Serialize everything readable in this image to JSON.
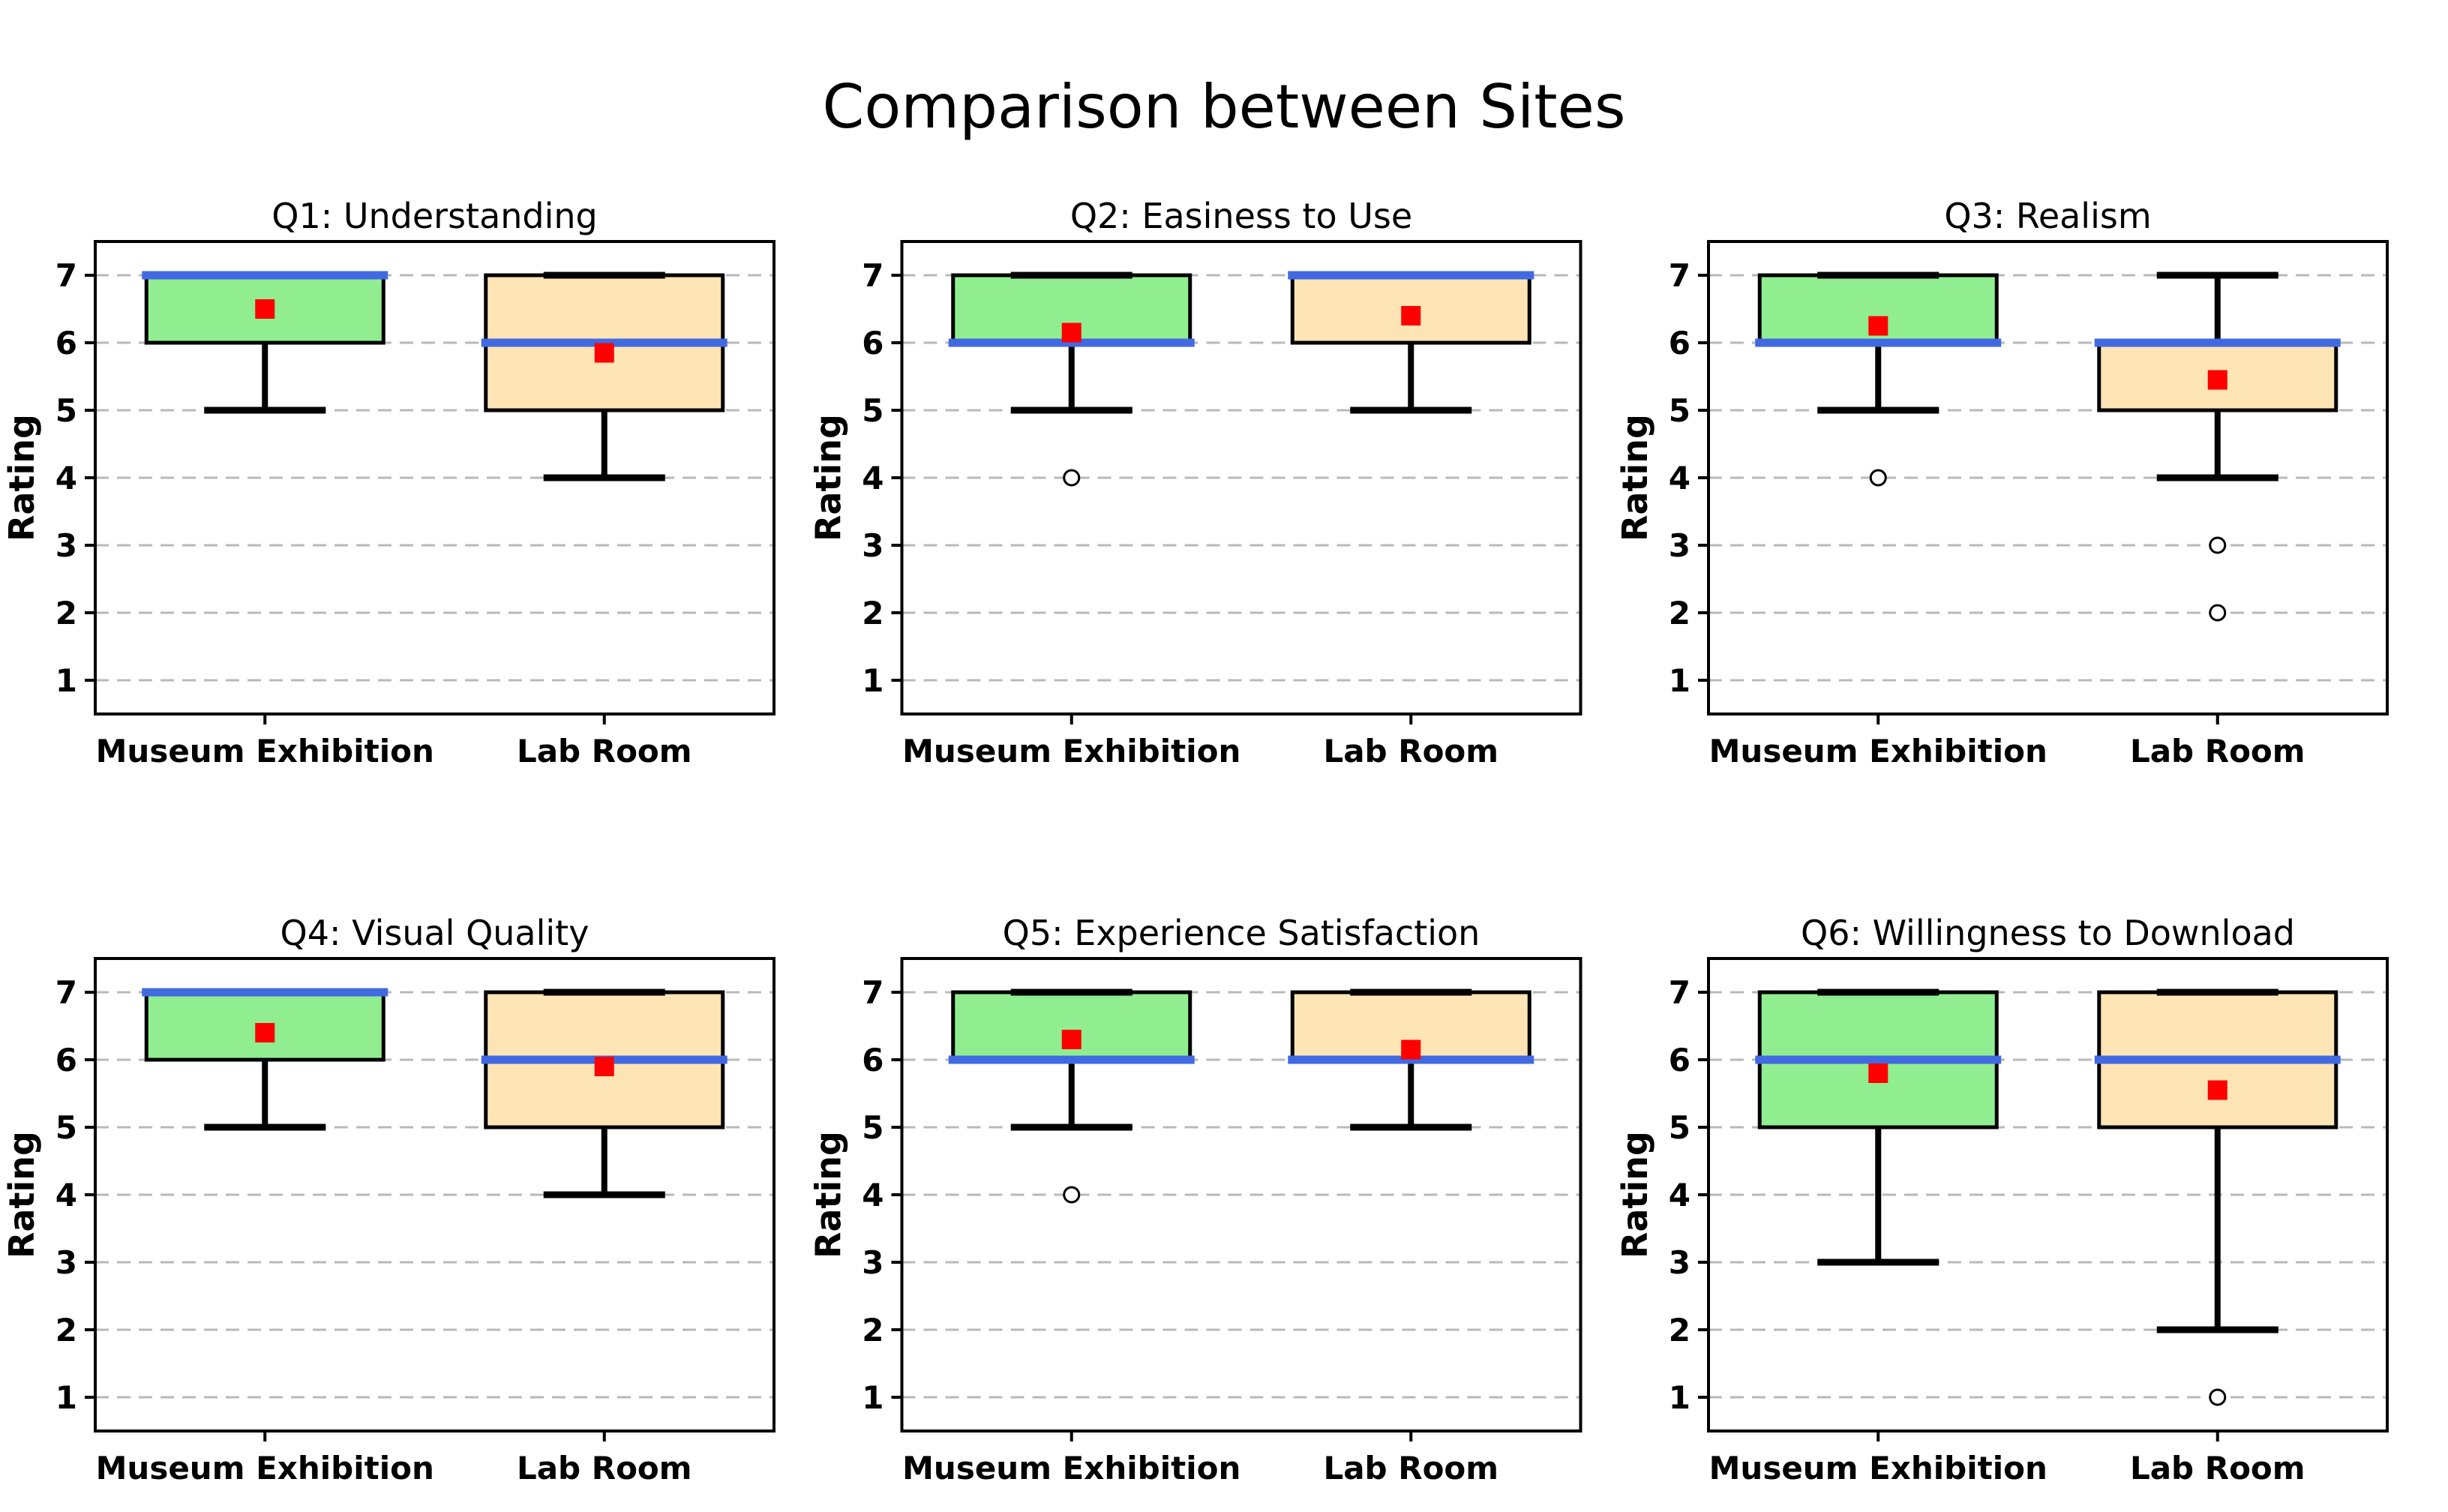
{
  "figure": {
    "suptitle": "Comparison between Sites",
    "background": "#ffffff",
    "grid_on": true,
    "colors": {
      "museum_box_fill": "#90EE90",
      "lab_box_fill": "#FFE4B5",
      "box_edge": "#000000",
      "whisker": "#000000",
      "median_line": "#4169E1",
      "mean_marker": "#FF0000",
      "gridline": "#b9b9b9",
      "spine": "#000000",
      "text": "#000000"
    }
  },
  "chart_data": [
    {
      "type": "box",
      "title": "Q1: Understanding",
      "ylabel": "Rating",
      "ylim": [
        0.5,
        7.5
      ],
      "yticks": [
        1,
        2,
        3,
        4,
        5,
        6,
        7
      ],
      "categories": [
        "Museum Exhibition",
        "Lab Room"
      ],
      "series": [
        {
          "name": "Museum Exhibition",
          "q1": 6,
          "median": 7,
          "q3": 7,
          "whisker_low": 5,
          "whisker_high": 7,
          "mean": 6.5,
          "outliers": []
        },
        {
          "name": "Lab Room",
          "q1": 5,
          "median": 6,
          "q3": 7,
          "whisker_low": 4,
          "whisker_high": 7,
          "mean": 5.85,
          "outliers": []
        }
      ]
    },
    {
      "type": "box",
      "title": "Q2: Easiness to Use",
      "ylabel": "Rating",
      "ylim": [
        0.5,
        7.5
      ],
      "yticks": [
        1,
        2,
        3,
        4,
        5,
        6,
        7
      ],
      "categories": [
        "Museum Exhibition",
        "Lab Room"
      ],
      "series": [
        {
          "name": "Museum Exhibition",
          "q1": 6,
          "median": 6,
          "q3": 7,
          "whisker_low": 5,
          "whisker_high": 7,
          "mean": 6.15,
          "outliers": [
            4
          ]
        },
        {
          "name": "Lab Room",
          "q1": 6,
          "median": 7,
          "q3": 7,
          "whisker_low": 5,
          "whisker_high": 7,
          "mean": 6.4,
          "outliers": []
        }
      ]
    },
    {
      "type": "box",
      "title": "Q3: Realism",
      "ylabel": "Rating",
      "ylim": [
        0.5,
        7.5
      ],
      "yticks": [
        1,
        2,
        3,
        4,
        5,
        6,
        7
      ],
      "categories": [
        "Museum Exhibition",
        "Lab Room"
      ],
      "series": [
        {
          "name": "Museum Exhibition",
          "q1": 6,
          "median": 6,
          "q3": 7,
          "whisker_low": 5,
          "whisker_high": 7,
          "mean": 6.25,
          "outliers": [
            4
          ]
        },
        {
          "name": "Lab Room",
          "q1": 5,
          "median": 6,
          "q3": 6,
          "whisker_low": 4,
          "whisker_high": 7,
          "mean": 5.45,
          "outliers": [
            3,
            2
          ]
        }
      ]
    },
    {
      "type": "box",
      "title": "Q4: Visual Quality",
      "ylabel": "Rating",
      "ylim": [
        0.5,
        7.5
      ],
      "yticks": [
        1,
        2,
        3,
        4,
        5,
        6,
        7
      ],
      "categories": [
        "Museum Exhibition",
        "Lab Room"
      ],
      "series": [
        {
          "name": "Museum Exhibition",
          "q1": 6,
          "median": 7,
          "q3": 7,
          "whisker_low": 5,
          "whisker_high": 7,
          "mean": 6.4,
          "outliers": []
        },
        {
          "name": "Lab Room",
          "q1": 5,
          "median": 6,
          "q3": 7,
          "whisker_low": 4,
          "whisker_high": 7,
          "mean": 5.9,
          "outliers": []
        }
      ]
    },
    {
      "type": "box",
      "title": "Q5: Experience Satisfaction",
      "ylabel": "Rating",
      "ylim": [
        0.5,
        7.5
      ],
      "yticks": [
        1,
        2,
        3,
        4,
        5,
        6,
        7
      ],
      "categories": [
        "Museum Exhibition",
        "Lab Room"
      ],
      "series": [
        {
          "name": "Museum Exhibition",
          "q1": 6,
          "median": 6,
          "q3": 7,
          "whisker_low": 5,
          "whisker_high": 7,
          "mean": 6.3,
          "outliers": [
            4
          ]
        },
        {
          "name": "Lab Room",
          "q1": 6,
          "median": 6,
          "q3": 7,
          "whisker_low": 5,
          "whisker_high": 7,
          "mean": 6.15,
          "outliers": []
        }
      ]
    },
    {
      "type": "box",
      "title": "Q6: Willingness to Download",
      "ylabel": "Rating",
      "ylim": [
        0.5,
        7.5
      ],
      "yticks": [
        1,
        2,
        3,
        4,
        5,
        6,
        7
      ],
      "categories": [
        "Museum Exhibition",
        "Lab Room"
      ],
      "series": [
        {
          "name": "Museum Exhibition",
          "q1": 5,
          "median": 6,
          "q3": 7,
          "whisker_low": 3,
          "whisker_high": 7,
          "mean": 5.8,
          "outliers": []
        },
        {
          "name": "Lab Room",
          "q1": 5,
          "median": 6,
          "q3": 7,
          "whisker_low": 2,
          "whisker_high": 7,
          "mean": 5.55,
          "outliers": [
            1
          ]
        }
      ]
    }
  ]
}
